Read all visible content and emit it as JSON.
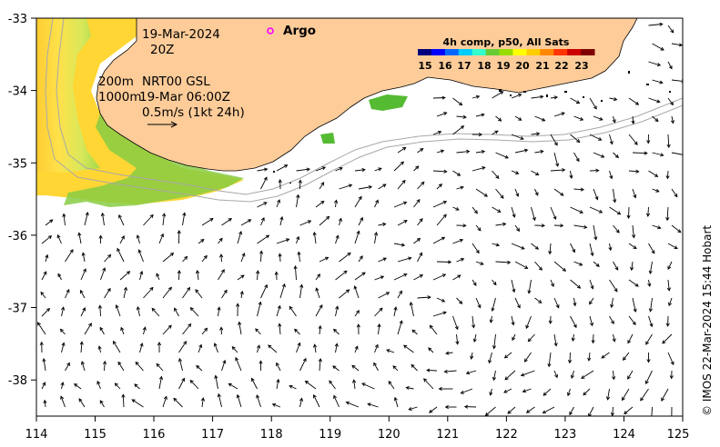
{
  "map": {
    "x_axis": {
      "min": 114,
      "max": 125,
      "ticks": [
        "114",
        "115",
        "116",
        "117",
        "118",
        "119",
        "120",
        "121",
        "122",
        "123",
        "124",
        "125"
      ]
    },
    "y_axis": {
      "min": -38.5,
      "max": -33,
      "ticks": [
        "-33",
        "-34",
        "-35",
        "-36",
        "-37",
        "-38"
      ]
    },
    "land_color": "#fdcc99",
    "ocean_color": "#ffffff"
  },
  "annotations": {
    "date": "19-Mar-2024",
    "time": "20Z",
    "depth_200": "200m",
    "depth_1000": "1000m",
    "product": "NRT00 GSL",
    "product_time": "19-Mar 06:00Z",
    "scale_label": "0.5m/s (1kt 24h)"
  },
  "argo": {
    "label": "Argo",
    "marker_color": "#ff00ff",
    "lon": 118.0,
    "lat": -33.15
  },
  "colorbar": {
    "title": "4h comp, p50, All Sats",
    "labels": [
      "15",
      "16",
      "17",
      "18",
      "19",
      "20",
      "21",
      "22",
      "23"
    ],
    "colors": [
      "#00007f",
      "#0000ff",
      "#0066ff",
      "#00ccff",
      "#33ffcc",
      "#66cc33",
      "#99dd00",
      "#ffff00",
      "#ffcc00",
      "#ff8800",
      "#ff3300",
      "#cc0000",
      "#7f0000"
    ]
  },
  "credit": "© IMOS 22-Mar-2024 15:44 Hobart"
}
